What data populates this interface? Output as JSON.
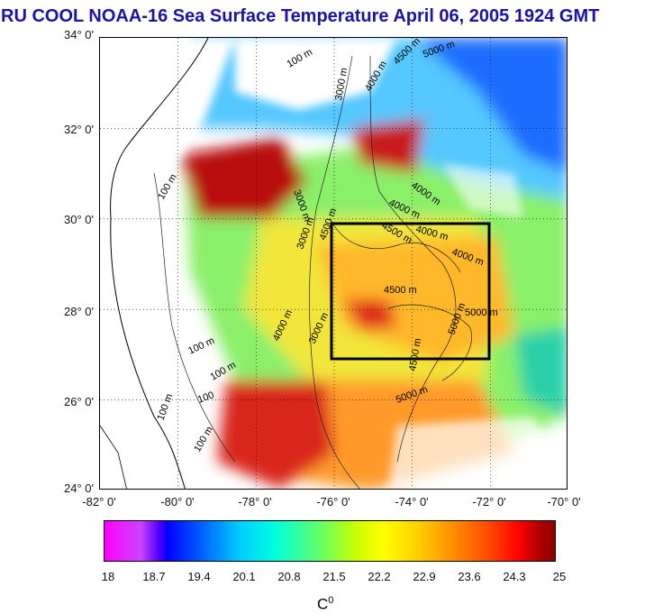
{
  "title": "RU COOL  NOAA-16 Sea Surface Temperature April 06, 2005 1924 GMT",
  "map": {
    "lat_labels": [
      "34° 0'",
      "32° 0'",
      "30° 0'",
      "28° 0'",
      "26° 0'",
      "24° 0'"
    ],
    "lon_labels": [
      "-82° 0'",
      "-80° 0'",
      "-78° 0'",
      "-76° 0'",
      "-74° 0'",
      "-72° 0'",
      "-70° 0'"
    ],
    "contour_labels": [
      "100 m",
      "3000 m",
      "4000 m",
      "4500 m",
      "5000 m",
      "100 m",
      "3000 m",
      "4000 m",
      "4000 m",
      "4000 m",
      "4000 m",
      "4500 m",
      "4500 m",
      "100 m",
      "100 m",
      "100 m",
      "100",
      "100 m",
      "4000 m",
      "3000 m",
      "4500 m",
      "5000 m",
      "5000 m",
      "3000 m",
      "4500 m",
      "5000 m"
    ],
    "box_color": "#000000"
  },
  "colorbar": {
    "labels": [
      "18",
      "18.7",
      "19.4",
      "20.1",
      "20.8",
      "21.5",
      "22.2",
      "22.9",
      "23.6",
      "24.3",
      "25"
    ],
    "unit": "C",
    "unit_sup": "0"
  },
  "colors": {
    "title": "#1a13a6",
    "cold": "#0000ff",
    "warm": "#8b0000"
  }
}
